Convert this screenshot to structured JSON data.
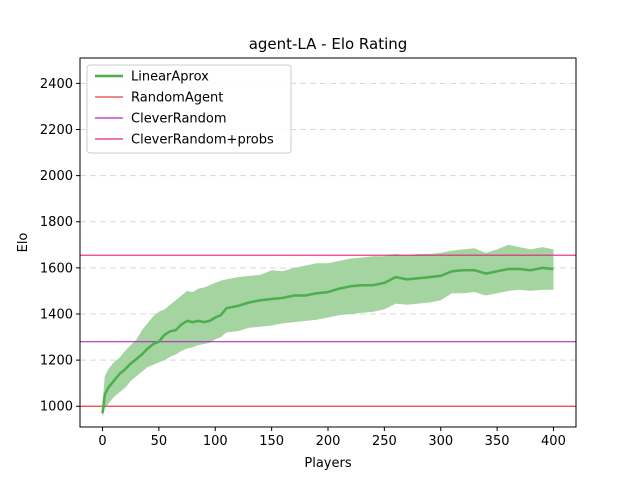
{
  "chart_data": {
    "type": "line",
    "title": "agent-LA - Elo Rating",
    "xlabel": "Players",
    "ylabel": "Elo",
    "xlim": [
      -20,
      420
    ],
    "ylim": [
      910,
      2510
    ],
    "xticks": [
      0,
      50,
      100,
      150,
      200,
      250,
      300,
      350,
      400
    ],
    "yticks": [
      1000,
      1200,
      1400,
      1600,
      1800,
      2000,
      2200,
      2400
    ],
    "grid": "horizontal dashed",
    "legend_position": "top-left",
    "series": [
      {
        "name": "LinearAprox",
        "kind": "line-with-band",
        "color": "#4cae4c",
        "band_color": "#a4d4a0",
        "x": [
          0,
          2,
          5,
          10,
          15,
          20,
          25,
          30,
          35,
          40,
          45,
          50,
          55,
          60,
          65,
          70,
          75,
          80,
          85,
          90,
          95,
          100,
          105,
          110,
          120,
          130,
          140,
          150,
          160,
          170,
          180,
          190,
          200,
          210,
          220,
          230,
          240,
          250,
          260,
          270,
          280,
          290,
          300,
          310,
          320,
          330,
          340,
          350,
          360,
          370,
          380,
          390,
          400
        ],
        "y": [
          970,
          1050,
          1080,
          1110,
          1140,
          1160,
          1185,
          1205,
          1225,
          1250,
          1270,
          1280,
          1310,
          1325,
          1330,
          1355,
          1370,
          1365,
          1370,
          1365,
          1370,
          1385,
          1395,
          1425,
          1435,
          1450,
          1460,
          1465,
          1470,
          1480,
          1480,
          1490,
          1495,
          1510,
          1520,
          1525,
          1525,
          1535,
          1560,
          1550,
          1555,
          1560,
          1565,
          1585,
          1590,
          1590,
          1575,
          1585,
          1595,
          1595,
          1590,
          1600,
          1595
        ],
        "upper": [
          1010,
          1130,
          1160,
          1190,
          1210,
          1240,
          1265,
          1290,
          1330,
          1360,
          1390,
          1410,
          1420,
          1440,
          1460,
          1480,
          1500,
          1495,
          1510,
          1515,
          1525,
          1535,
          1545,
          1550,
          1560,
          1565,
          1570,
          1590,
          1585,
          1600,
          1610,
          1620,
          1620,
          1630,
          1640,
          1645,
          1650,
          1650,
          1660,
          1655,
          1660,
          1660,
          1665,
          1675,
          1680,
          1685,
          1665,
          1680,
          1700,
          1690,
          1680,
          1690,
          1680
        ],
        "lower": [
          950,
          990,
          1010,
          1040,
          1060,
          1080,
          1110,
          1130,
          1150,
          1170,
          1180,
          1190,
          1200,
          1215,
          1225,
          1240,
          1250,
          1255,
          1265,
          1270,
          1275,
          1290,
          1300,
          1320,
          1325,
          1340,
          1345,
          1350,
          1360,
          1365,
          1370,
          1375,
          1385,
          1395,
          1400,
          1405,
          1410,
          1420,
          1445,
          1440,
          1445,
          1450,
          1460,
          1490,
          1490,
          1495,
          1480,
          1490,
          1500,
          1505,
          1500,
          1505,
          1505
        ]
      },
      {
        "name": "RandomAgent",
        "kind": "hline",
        "y": 1000,
        "color": "#e8413c"
      },
      {
        "name": "CleverRandom",
        "kind": "hline",
        "y": 1280,
        "color": "#b82ac4"
      },
      {
        "name": "CleverRandom+probs",
        "kind": "hline",
        "y": 1655,
        "color": "#e0247a"
      }
    ]
  }
}
